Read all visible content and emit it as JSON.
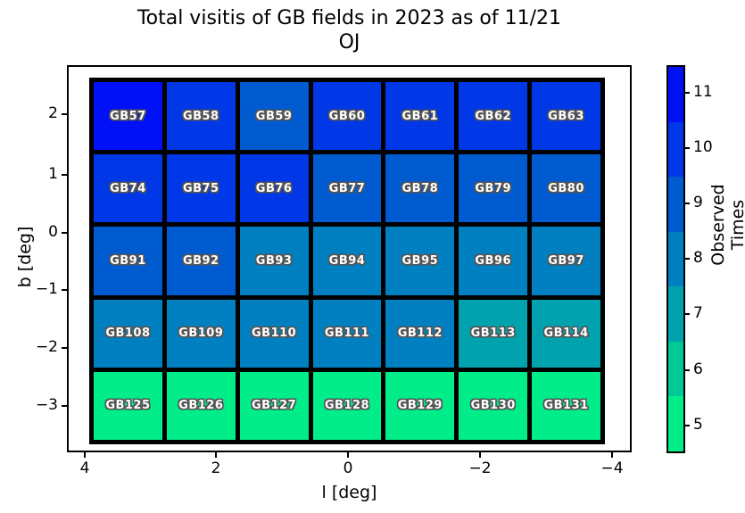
{
  "title": {
    "line1": "Total visitis of GB fields in 2023 as of 11/21",
    "line2": "OJ"
  },
  "axes": {
    "xlabel": "l [deg]",
    "ylabel": "b [deg]",
    "x_tick_labels": [
      "4",
      "2",
      "0",
      "−2",
      "−4"
    ],
    "y_tick_labels": [
      "2",
      "1",
      "0",
      "−1",
      "−2",
      "−3"
    ]
  },
  "colorbar": {
    "label": "Observed Times",
    "tick_labels_top_to_bottom": [
      "11",
      "10",
      "9",
      "8",
      "7",
      "6",
      "5"
    ],
    "bands_top_to_bottom": [
      {
        "value": 11,
        "color": "#0011F7"
      },
      {
        "value": 10,
        "color": "#0037E6"
      },
      {
        "value": 9,
        "color": "#005BD1"
      },
      {
        "value": 8,
        "color": "#0080C0"
      },
      {
        "value": 7,
        "color": "#00A3AD"
      },
      {
        "value": 6,
        "color": "#00C897"
      },
      {
        "value": 5,
        "color": "#00ED89"
      }
    ]
  },
  "chart_data": {
    "type": "heatmap",
    "title": "Total visitis of GB fields in 2023 as of 11/21 OJ",
    "xlabel": "l [deg]",
    "ylabel": "b [deg]",
    "colorbar_label": "Observed Times",
    "x_axis": {
      "ticks": [
        4,
        2,
        0,
        -2,
        -4
      ],
      "reversed": true
    },
    "y_axis": {
      "ticks": [
        2,
        1,
        0,
        -1,
        -2,
        -3
      ]
    },
    "value_range": [
      4.5,
      11.5
    ],
    "colormap": "winter_r (discrete, 7 bands)",
    "color_scale": {
      "5": "#00ED89",
      "6": "#00C897",
      "7": "#00A3AD",
      "8": "#0080C0",
      "9": "#005BD1",
      "10": "#0037E6",
      "11": "#0011F7"
    },
    "rows": [
      {
        "labels": [
          "GB57",
          "GB58",
          "GB59",
          "GB60",
          "GB61",
          "GB62",
          "GB63"
        ],
        "values": [
          11,
          10,
          9,
          10,
          10,
          10,
          10
        ]
      },
      {
        "labels": [
          "GB74",
          "GB75",
          "GB76",
          "GB77",
          "GB78",
          "GB79",
          "GB80"
        ],
        "values": [
          10,
          10,
          10,
          9,
          9,
          9,
          9
        ]
      },
      {
        "labels": [
          "GB91",
          "GB92",
          "GB93",
          "GB94",
          "GB95",
          "GB96",
          "GB97"
        ],
        "values": [
          9,
          9,
          8,
          8,
          8,
          8,
          8
        ]
      },
      {
        "labels": [
          "GB108",
          "GB109",
          "GB110",
          "GB111",
          "GB112",
          "GB113",
          "GB114"
        ],
        "values": [
          8,
          8,
          8,
          8,
          8,
          7,
          7
        ]
      },
      {
        "labels": [
          "GB125",
          "GB126",
          "GB127",
          "GB128",
          "GB129",
          "GB130",
          "GB131"
        ],
        "values": [
          5,
          5,
          5,
          5,
          5,
          5,
          5
        ]
      }
    ]
  }
}
